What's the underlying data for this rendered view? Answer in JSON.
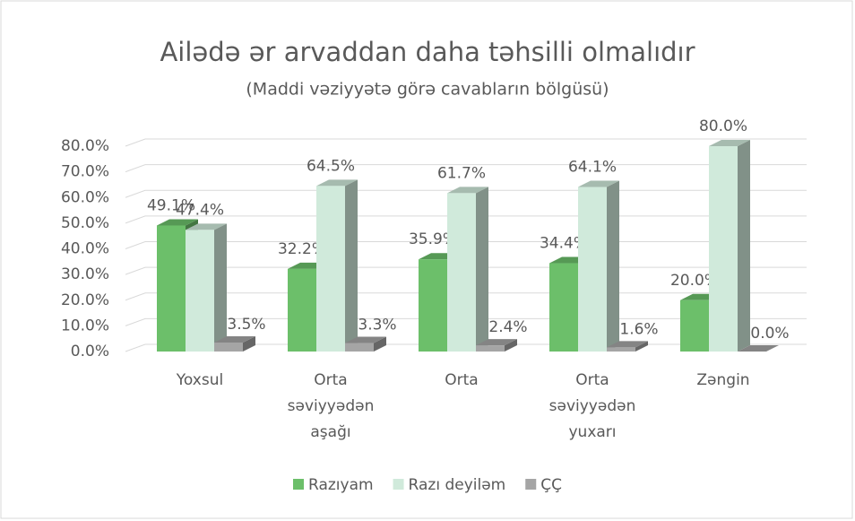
{
  "chart_data": {
    "type": "bar3d",
    "title": "Ailədə ər arvaddan daha təhsilli olmalıdır",
    "subtitle": "(Maddi vəziyyətə görə cavabların bölgüsü)",
    "categories": [
      "Yoxsul",
      "Orta səviyyədən aşağı",
      "Orta",
      "Orta səviyyədən yuxarı",
      "Zəngin"
    ],
    "series": [
      {
        "name": "Razıyam",
        "color": "#6cbf6a",
        "values": [
          49.1,
          32.2,
          35.9,
          34.4,
          20.0
        ],
        "value_labels": [
          "49.1%",
          "32.2%",
          "35.9%",
          "34.4%",
          "20.0%"
        ]
      },
      {
        "name": "Razı deyiləm",
        "color": "#d0eadb",
        "values": [
          47.4,
          64.5,
          61.7,
          64.1,
          80.0
        ],
        "value_labels": [
          "47.4%",
          "64.5%",
          "61.7%",
          "64.1%",
          "80.0%"
        ]
      },
      {
        "name": "ÇÇ",
        "color": "#a5a5a5",
        "values": [
          3.5,
          3.3,
          2.4,
          1.6,
          0.0
        ],
        "value_labels": [
          "3.5%",
          "3.3%",
          "2.4%",
          "1.6%",
          "0.0%"
        ]
      }
    ],
    "ylim": [
      0,
      80
    ],
    "yticks": [
      {
        "value": 0,
        "label": "0.0%"
      },
      {
        "value": 10,
        "label": "10.0%"
      },
      {
        "value": 20,
        "label": "20.0%"
      },
      {
        "value": 30,
        "label": "30.0%"
      },
      {
        "value": 40,
        "label": "40.0%"
      },
      {
        "value": 50,
        "label": "50.0%"
      },
      {
        "value": 60,
        "label": "60.0%"
      },
      {
        "value": 70,
        "label": "70.0%"
      },
      {
        "value": 80,
        "label": "80.0%"
      }
    ],
    "grid": true,
    "legend": "bottom"
  }
}
